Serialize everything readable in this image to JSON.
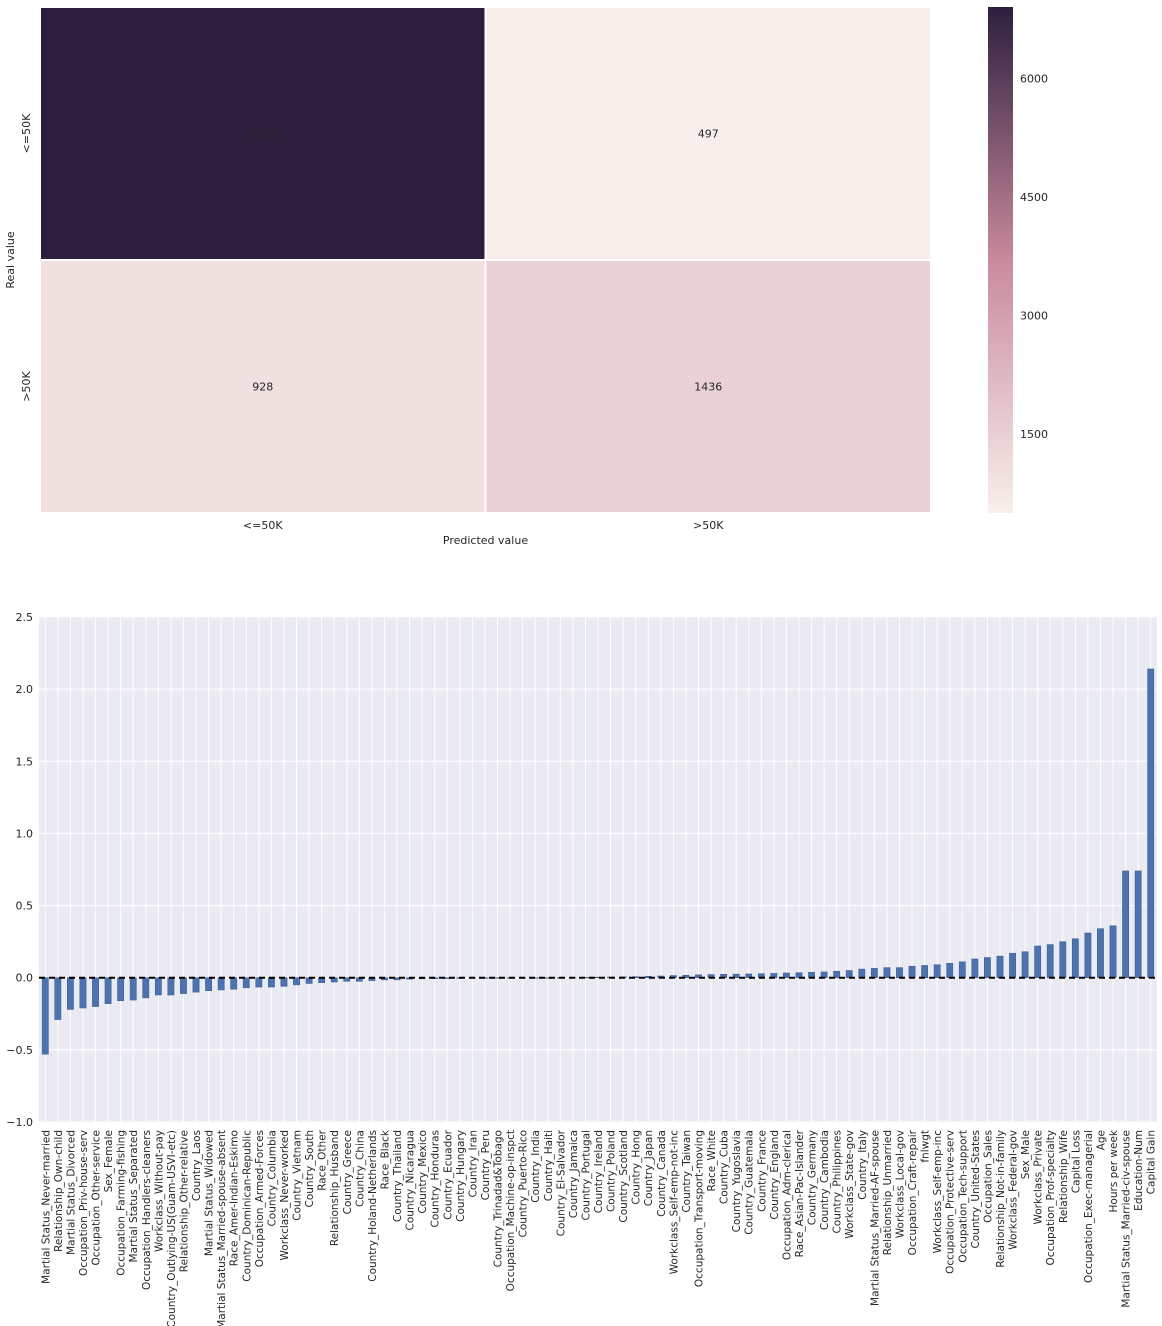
{
  "chart_data": [
    {
      "type": "heatmap",
      "xlabel": "Predicted value",
      "ylabel": "Real value",
      "x_categories": [
        "<=50K",
        ">50K"
      ],
      "y_categories": [
        "<=50K",
        ">50K"
      ],
      "values": [
        [
          6908,
          497
        ],
        [
          928,
          1436
        ]
      ],
      "colorbar": {
        "ticks": [
          1500,
          3000,
          4500,
          6000
        ],
        "range": [
          497,
          6908
        ]
      },
      "colors": {
        "low": "#f8efec",
        "mid": "#c98a9c",
        "high": "#2d1e3e"
      }
    },
    {
      "type": "bar",
      "ylim": [
        -1.0,
        2.5
      ],
      "yticks": [
        "2.5",
        "2.0",
        "1.5",
        "1.0",
        "0.5",
        "0.0",
        "−0.5",
        "−1.0"
      ],
      "ytick_values": [
        2.5,
        2.0,
        1.5,
        1.0,
        0.5,
        0.0,
        -0.5,
        -1.0
      ],
      "bar_color": "#4c72b0",
      "background": "#eaeaf2",
      "zero_line": "dashed-black",
      "categories": [
        "Martial Status_Never-married",
        "Relationship_Own-child",
        "Martial Status_Divorced",
        "Occupation_Priv-house-serv",
        "Occupation_Other-service",
        "Sex_Female",
        "Occupation_Farming-fishing",
        "Martial Status_Separated",
        "Occupation_Handlers-cleaners",
        "Workclass_Without-pay",
        "Country_Outlying-US(Guam-USVI-etc)",
        "Relationship_Other-relative",
        "Country_Laos",
        "Martial Status_Widowed",
        "Martial Status_Married-spouse-absent",
        "Race_Amer-Indian-Eskimo",
        "Country_Dominican-Republic",
        "Occupation_Armed-Forces",
        "Country_Columbia",
        "Workclass_Never-worked",
        "Country_Vietnam",
        "Country_South",
        "Race_Other",
        "Relationship_Husband",
        "Country_Greece",
        "Country_China",
        "Country_Holand-Netherlands",
        "Race_Black",
        "Country_Thailand",
        "Country_Nicaragua",
        "Country_Mexico",
        "Country_Honduras",
        "Country_Ecuador",
        "Country_Hungary",
        "Country_Iran",
        "Country_Peru",
        "Country_Trinadad&Tobago",
        "Occupation_Machine-op-inspct",
        "Country_Puerto-Rico",
        "Country_India",
        "Country_Haiti",
        "Country_El-Salvador",
        "Country_Jamaica",
        "Country_Portugal",
        "Country_Ireland",
        "Country_Poland",
        "Country_Scotland",
        "Country_Hong",
        "Country_Japan",
        "Country_Canada",
        "Workclass_Self-emp-not-inc",
        "Country_Taiwan",
        "Occupation_Transport-moving",
        "Race_White",
        "Country_Cuba",
        "Country_Yugoslavia",
        "Country_Guatemala",
        "Country_France",
        "Country_England",
        "Occupation_Adm-clerical",
        "Race_Asian-Pac-Islander",
        "Country_Germany",
        "Country_Cambodia",
        "Country_Philippines",
        "Workclass_State-gov",
        "Country_Italy",
        "Martial Status_Married-AF-spouse",
        "Relationship_Unmarried",
        "Workclass_Local-gov",
        "Occupation_Craft-repair",
        "fnlwgt",
        "Workclass_Self-emp-inc",
        "Occupation_Protective-serv",
        "Occupation_Tech-support",
        "Country_United-States",
        "Occupation_Sales",
        "Relationship_Not-in-family",
        "Workclass_Federal-gov",
        "Sex_Male",
        "Workclass_Private",
        "Occupation_Prof-specialty",
        "Relationship_Wife",
        "Capital Loss",
        "Occupation_Exec-managerial",
        "Age",
        "Hours per week",
        "Martial Status_Married-civ-spouse",
        "Education-Num",
        "Capital Gain"
      ],
      "values": [
        -0.53,
        -0.29,
        -0.22,
        -0.21,
        -0.2,
        -0.18,
        -0.16,
        -0.155,
        -0.14,
        -0.12,
        -0.12,
        -0.11,
        -0.1,
        -0.09,
        -0.085,
        -0.08,
        -0.07,
        -0.065,
        -0.065,
        -0.06,
        -0.05,
        -0.04,
        -0.035,
        -0.03,
        -0.025,
        -0.025,
        -0.02,
        -0.015,
        -0.015,
        -0.01,
        -0.008,
        -0.007,
        -0.006,
        -0.005,
        -0.004,
        -0.003,
        -0.002,
        -0.002,
        -0.001,
        -0.001,
        0.0,
        0.001,
        0.002,
        0.003,
        0.004,
        0.005,
        0.006,
        0.007,
        0.01,
        0.012,
        0.015,
        0.017,
        0.02,
        0.022,
        0.024,
        0.025,
        0.026,
        0.028,
        0.03,
        0.033,
        0.035,
        0.038,
        0.04,
        0.045,
        0.05,
        0.06,
        0.065,
        0.07,
        0.07,
        0.08,
        0.085,
        0.09,
        0.1,
        0.11,
        0.13,
        0.14,
        0.15,
        0.17,
        0.18,
        0.22,
        0.23,
        0.25,
        0.27,
        0.31,
        0.34,
        0.36,
        0.74,
        0.74,
        2.14
      ]
    }
  ]
}
